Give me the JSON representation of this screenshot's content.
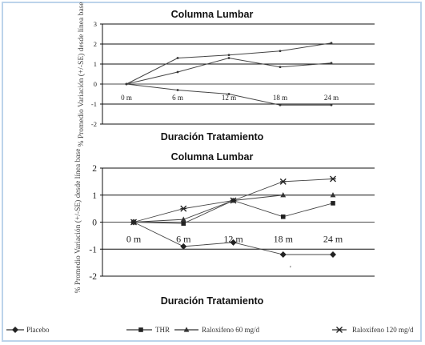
{
  "chart_data": [
    {
      "type": "line",
      "title": "Columna Lumbar",
      "xlabel": "Duración Tratamiento",
      "ylabel": "% Promedio Variación (+/-SE) desde línea base",
      "categories": [
        "0 m",
        "6 m",
        "12 m",
        "18 m",
        "24 m"
      ],
      "ylim": [
        -2,
        3
      ],
      "yticks": [
        "3",
        "2",
        "1",
        "0",
        "-1",
        "-2"
      ],
      "grid": true,
      "series": [
        {
          "values": [
            0,
            1.3,
            1.45,
            1.65,
            2.05
          ]
        },
        {
          "values": [
            0,
            0.6,
            1.3,
            0.85,
            1.05
          ]
        },
        {
          "values": [
            0,
            -0.3,
            -0.5,
            -1.05,
            -1.05
          ]
        }
      ]
    },
    {
      "type": "line",
      "title": "Columna Lumbar",
      "xlabel": "Duración Tratamiento",
      "ylabel": "% Promedio Variación (+/-SE) desde línea base",
      "categories": [
        "0 m",
        "6 m",
        "12 m",
        "18 m",
        "24 m"
      ],
      "ylim": [
        -2,
        2
      ],
      "yticks": [
        "2",
        "1",
        "0",
        "-1",
        "-2"
      ],
      "grid": true,
      "series": [
        {
          "name": "Placebo",
          "marker": "diamond",
          "values": [
            0,
            -0.9,
            -0.75,
            -1.2,
            -1.2
          ]
        },
        {
          "name": "THR",
          "marker": "square",
          "values": [
            0,
            -0.05,
            0.8,
            0.2,
            0.7
          ]
        },
        {
          "name": "Raloxifeno 60 mg/d",
          "marker": "triangle",
          "values": [
            0,
            0.1,
            0.8,
            1.0,
            1.0
          ]
        },
        {
          "name": "Raloxifeno 120 mg/d",
          "marker": "star",
          "values": [
            0,
            0.5,
            0.8,
            1.5,
            1.6
          ]
        }
      ]
    }
  ],
  "legend": [
    {
      "label": "Placebo",
      "marker": "diamond"
    },
    {
      "label": "THR",
      "marker": "square"
    },
    {
      "label": "Raloxifeno 60 mg/d",
      "marker": "triangle"
    },
    {
      "label": "Raloxifeno 120 mg/d",
      "marker": "star"
    }
  ],
  "colors": {
    "line": "#444444",
    "grid": "#111111",
    "frame": "#bcd3ea"
  }
}
